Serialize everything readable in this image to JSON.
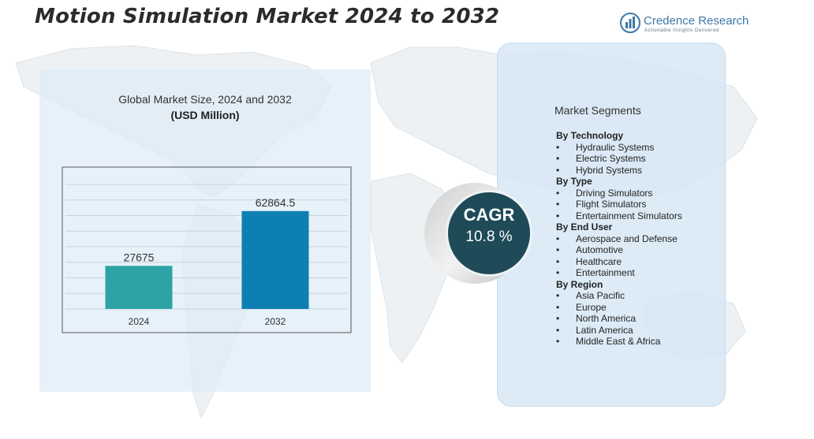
{
  "header": {
    "title": "Motion Simulation Market 2024 to 2032"
  },
  "logo": {
    "name": "Credence Research",
    "tagline": "Actionable Insights Delivered"
  },
  "chart_data": {
    "type": "bar",
    "title": "Global Market Size, 2024 and 2032",
    "unit": "(USD Million)",
    "categories": [
      "2024",
      "2032"
    ],
    "values": [
      27675,
      62864.5
    ],
    "value_labels": [
      "27675",
      "62864.5"
    ],
    "colors": [
      "#2ea3a6",
      "#0e7fb2"
    ],
    "ylim": [
      0,
      80000
    ],
    "grid": true,
    "legend": "none"
  },
  "cagr": {
    "label": "CAGR",
    "value": "10.8 %"
  },
  "segments": {
    "title": "Market Segments",
    "groups": [
      {
        "heading": "By Technology",
        "items": [
          "Hydraulic Systems",
          "Electric Systems",
          "Hybrid Systems"
        ]
      },
      {
        "heading": "By   Type",
        "items": [
          "Driving Simulators",
          "Flight Simulators",
          "Entertainment Simulators"
        ]
      },
      {
        "heading": "By End User",
        "items": [
          "Aerospace and Defense",
          "Automotive",
          "Healthcare",
          "Entertainment"
        ]
      },
      {
        "heading": "By Region",
        "items": [
          "Asia Pacific",
          "Europe",
          "North America",
          "Latin America",
          "Middle East & Africa"
        ]
      }
    ]
  }
}
